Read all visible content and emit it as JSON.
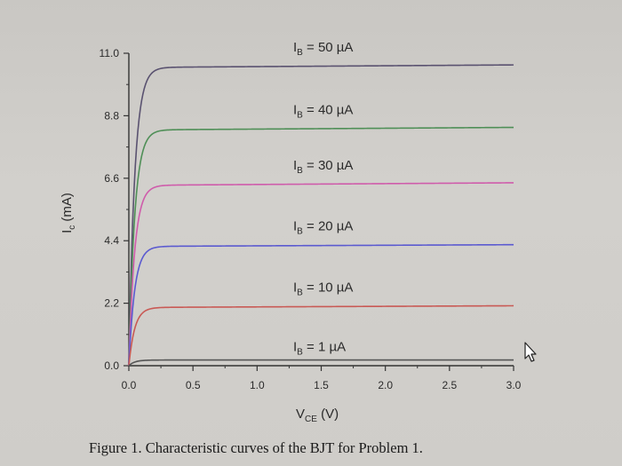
{
  "chart_data": {
    "type": "line",
    "xlabel": "V",
    "xlabel_sub": "CE",
    "xlabel_unit": " (V)",
    "ylabel": "I",
    "ylabel_sub": "c",
    "ylabel_unit": " (mA)",
    "xlim": [
      0.0,
      3.0
    ],
    "ylim": [
      0.0,
      11.0
    ],
    "x_ticks": [
      "0.0",
      "0.5",
      "1.0",
      "1.5",
      "2.0",
      "2.5",
      "3.0"
    ],
    "y_ticks": [
      "0.0",
      "2.2",
      "4.4",
      "6.6",
      "8.8",
      "11.0"
    ],
    "grid": false,
    "series": [
      {
        "name": "IB = 50 µA",
        "label_main": "I",
        "label_sub": "B",
        "label_rest": " = 50 µA",
        "color": "#5a5270",
        "sat": 10.5,
        "slope": 0.03
      },
      {
        "name": "IB = 40 µA",
        "label_main": "I",
        "label_sub": "B",
        "label_rest": " = 40 µA",
        "color": "#4f8f57",
        "sat": 8.3,
        "slope": 0.03
      },
      {
        "name": "IB = 30 µA",
        "label_main": "I",
        "label_sub": "B",
        "label_rest": " = 30 µA",
        "color": "#cf5cab",
        "sat": 6.35,
        "slope": 0.03
      },
      {
        "name": "IB = 20 µA",
        "label_main": "I",
        "label_sub": "B",
        "label_rest": " = 20 µA",
        "color": "#5b5ad0",
        "sat": 4.2,
        "slope": 0.02
      },
      {
        "name": "IB = 10 µA",
        "label_main": "I",
        "label_sub": "B",
        "label_rest": " = 10 µA",
        "color": "#c95a55",
        "sat": 2.05,
        "slope": 0.02
      },
      {
        "name": "IB = 1 µA",
        "label_main": "I",
        "label_sub": "B",
        "label_rest": " = 1 µA",
        "color": "#555555",
        "sat": 0.2,
        "slope": 0.0
      }
    ]
  },
  "caption": "Figure 1.  Characteristic curves of the BJT for Problem 1."
}
